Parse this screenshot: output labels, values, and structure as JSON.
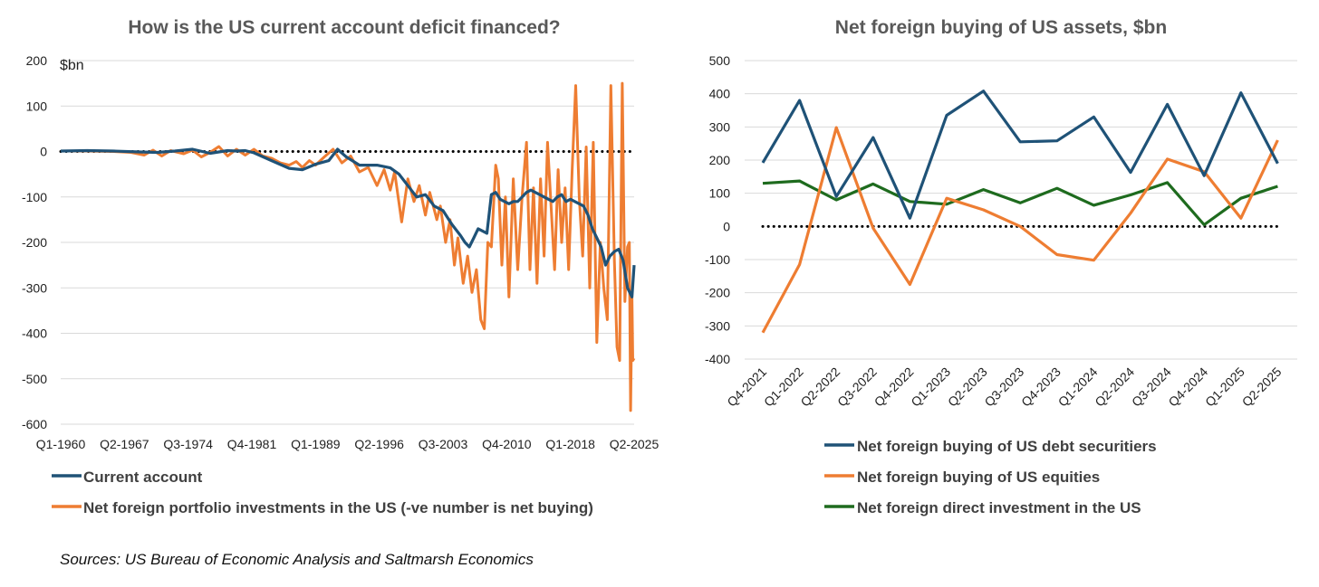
{
  "colors": {
    "navy": "#1f5277",
    "orange": "#ee7d32",
    "green": "#1e6b1e",
    "zero": "#000000"
  },
  "chart_data": [
    {
      "type": "line",
      "title": "How is the US current account deficit financed?",
      "ylabel": "$bn",
      "ylim": [
        -600,
        200
      ],
      "yticks": [
        "200",
        "100",
        "0",
        "-100",
        "-200",
        "-300",
        "-400",
        "-500",
        "-600"
      ],
      "x_tick_labels": [
        "Q1-1960",
        "Q2-1967",
        "Q3-1974",
        "Q4-1981",
        "Q1-1989",
        "Q2-1996",
        "Q3-2003",
        "Q4-2010",
        "Q1-2018",
        "Q2-2025"
      ],
      "x_range": [
        1960.0,
        2025.25
      ],
      "zero_line": true,
      "series": [
        {
          "name": "Current account",
          "color_key": "navy",
          "points": [
            [
              1960,
              1
            ],
            [
              1963,
              2
            ],
            [
              1966,
              1
            ],
            [
              1969,
              -1
            ],
            [
              1971,
              -2
            ],
            [
              1973,
              1
            ],
            [
              1975,
              5
            ],
            [
              1977,
              -4
            ],
            [
              1979,
              2
            ],
            [
              1980,
              1
            ],
            [
              1981,
              2
            ],
            [
              1982,
              -3
            ],
            [
              1984,
              -20
            ],
            [
              1986,
              -37
            ],
            [
              1987.5,
              -40
            ],
            [
              1989,
              -28
            ],
            [
              1990.5,
              -20
            ],
            [
              1991.5,
              5
            ],
            [
              1992.5,
              -12
            ],
            [
              1994,
              -30
            ],
            [
              1996,
              -30
            ],
            [
              1997.5,
              -36
            ],
            [
              1998.5,
              -50
            ],
            [
              1999.5,
              -75
            ],
            [
              2000.5,
              -100
            ],
            [
              2001.5,
              -95
            ],
            [
              2002.5,
              -120
            ],
            [
              2003.5,
              -130
            ],
            [
              2004.5,
              -160
            ],
            [
              2005.5,
              -185
            ],
            [
              2006,
              -200
            ],
            [
              2006.5,
              -210
            ],
            [
              2007,
              -190
            ],
            [
              2007.5,
              -170
            ],
            [
              2008,
              -175
            ],
            [
              2008.5,
              -180
            ],
            [
              2009,
              -95
            ],
            [
              2009.5,
              -90
            ],
            [
              2010,
              -105
            ],
            [
              2010.5,
              -110
            ],
            [
              2011,
              -115
            ],
            [
              2011.5,
              -110
            ],
            [
              2012,
              -110
            ],
            [
              2012.5,
              -100
            ],
            [
              2013,
              -90
            ],
            [
              2013.5,
              -85
            ],
            [
              2014,
              -90
            ],
            [
              2014.5,
              -95
            ],
            [
              2015,
              -100
            ],
            [
              2015.5,
              -105
            ],
            [
              2016,
              -110
            ],
            [
              2016.5,
              -100
            ],
            [
              2017,
              -95
            ],
            [
              2017.5,
              -110
            ],
            [
              2018,
              -105
            ],
            [
              2018.5,
              -110
            ],
            [
              2019,
              -115
            ],
            [
              2019.5,
              -120
            ],
            [
              2020,
              -140
            ],
            [
              2020.5,
              -170
            ],
            [
              2021,
              -190
            ],
            [
              2021.5,
              -210
            ],
            [
              2022,
              -250
            ],
            [
              2022.5,
              -230
            ],
            [
              2023,
              -220
            ],
            [
              2023.5,
              -215
            ],
            [
              2024,
              -240
            ],
            [
              2024.5,
              -300
            ],
            [
              2025,
              -320
            ],
            [
              2025.25,
              -250
            ]
          ]
        },
        {
          "name": "Net foreign portfolio investments in the US (-ve number is net buying)",
          "color_key": "orange",
          "points": [
            [
              1960,
              1
            ],
            [
              1963,
              1
            ],
            [
              1966,
              0
            ],
            [
              1968,
              -2
            ],
            [
              1969.5,
              -8
            ],
            [
              1970.5,
              3
            ],
            [
              1971.5,
              -10
            ],
            [
              1972.5,
              2
            ],
            [
              1974,
              -5
            ],
            [
              1975,
              3
            ],
            [
              1976,
              -12
            ],
            [
              1977,
              -2
            ],
            [
              1978,
              11
            ],
            [
              1979,
              -10
            ],
            [
              1980,
              5
            ],
            [
              1981,
              -8
            ],
            [
              1982,
              5
            ],
            [
              1983,
              -10
            ],
            [
              1984,
              -15
            ],
            [
              1985,
              -25
            ],
            [
              1986,
              -30
            ],
            [
              1986.8,
              -22
            ],
            [
              1987.5,
              -35
            ],
            [
              1988.3,
              -20
            ],
            [
              1989,
              -30
            ],
            [
              1990,
              -12
            ],
            [
              1991,
              5
            ],
            [
              1992,
              -25
            ],
            [
              1993,
              -10
            ],
            [
              1994,
              -45
            ],
            [
              1995,
              -35
            ],
            [
              1996,
              -75
            ],
            [
              1996.8,
              -40
            ],
            [
              1997.5,
              -85
            ],
            [
              1998,
              -45
            ],
            [
              1998.8,
              -155
            ],
            [
              1999.5,
              -60
            ],
            [
              2000.2,
              -110
            ],
            [
              2000.8,
              -75
            ],
            [
              2001.5,
              -140
            ],
            [
              2002,
              -90
            ],
            [
              2002.8,
              -150
            ],
            [
              2003.2,
              -120
            ],
            [
              2003.8,
              -200
            ],
            [
              2004.3,
              -150
            ],
            [
              2004.8,
              -250
            ],
            [
              2005.2,
              -190
            ],
            [
              2005.8,
              -290
            ],
            [
              2006.3,
              -230
            ],
            [
              2006.8,
              -310
            ],
            [
              2007.3,
              -260
            ],
            [
              2007.8,
              -370
            ],
            [
              2008.2,
              -390
            ],
            [
              2008.6,
              -200
            ],
            [
              2009,
              -210
            ],
            [
              2009.5,
              -30
            ],
            [
              2009.8,
              -60
            ],
            [
              2010.2,
              -250
            ],
            [
              2010.6,
              -100
            ],
            [
              2011,
              -320
            ],
            [
              2011.5,
              -60
            ],
            [
              2012,
              -260
            ],
            [
              2012.5,
              -100
            ],
            [
              2013,
              20
            ],
            [
              2013.4,
              -260
            ],
            [
              2013.8,
              -80
            ],
            [
              2014.2,
              -290
            ],
            [
              2014.6,
              -60
            ],
            [
              2015,
              -230
            ],
            [
              2015.4,
              20
            ],
            [
              2015.8,
              -120
            ],
            [
              2016.2,
              -260
            ],
            [
              2016.6,
              -40
            ],
            [
              2017,
              -200
            ],
            [
              2017.4,
              -80
            ],
            [
              2017.8,
              -260
            ],
            [
              2018.2,
              -40
            ],
            [
              2018.6,
              145
            ],
            [
              2019,
              -100
            ],
            [
              2019.4,
              -230
            ],
            [
              2019.8,
              10
            ],
            [
              2020.2,
              -300
            ],
            [
              2020.6,
              20
            ],
            [
              2021,
              -420
            ],
            [
              2021.4,
              -200
            ],
            [
              2021.8,
              -300
            ],
            [
              2022.2,
              -370
            ],
            [
              2022.6,
              145
            ],
            [
              2023,
              -240
            ],
            [
              2023.3,
              -430
            ],
            [
              2023.6,
              -460
            ],
            [
              2023.9,
              150
            ],
            [
              2024.2,
              -330
            ],
            [
              2024.5,
              -210
            ],
            [
              2024.7,
              -200
            ],
            [
              2024.85,
              -570
            ],
            [
              2025,
              -320
            ],
            [
              2025.1,
              -460
            ],
            [
              2025.25,
              -455
            ]
          ]
        }
      ],
      "legend_position": "bottom"
    },
    {
      "type": "line",
      "title": "Net foreign buying of US assets, $bn",
      "ylim": [
        -400,
        500
      ],
      "yticks": [
        "500",
        "400",
        "300",
        "200",
        "100",
        "0",
        "-100",
        "-200",
        "-300",
        "-400"
      ],
      "categories": [
        "Q4-2021",
        "Q1-2022",
        "Q2-2022",
        "Q3-2022",
        "Q4-2022",
        "Q1-2023",
        "Q2-2023",
        "Q3-2023",
        "Q4-2023",
        "Q1-2024",
        "Q2-2024",
        "Q3-2024",
        "Q4-2024",
        "Q1-2025",
        "Q2-2025"
      ],
      "zero_line": true,
      "series": [
        {
          "name": "Net foreign buying of US debt securitiers",
          "color_key": "navy",
          "values": [
            192,
            380,
            90,
            268,
            25,
            335,
            408,
            255,
            258,
            330,
            163,
            368,
            153,
            403,
            190
          ]
        },
        {
          "name": "Net foreign buying of US equities",
          "color_key": "orange",
          "values": [
            -320,
            -115,
            298,
            -5,
            -175,
            85,
            50,
            0,
            -85,
            -102,
            40,
            203,
            165,
            25,
            260
          ]
        },
        {
          "name": "Net foreign direct investment in the US",
          "color_key": "green",
          "values": [
            130,
            137,
            80,
            128,
            75,
            67,
            111,
            71,
            115,
            64,
            95,
            132,
            5,
            85,
            121
          ]
        }
      ],
      "legend_position": "bottom"
    }
  ],
  "source_note": "Sources: US Bureau of Economic Analysis and Saltmarsh Economics"
}
